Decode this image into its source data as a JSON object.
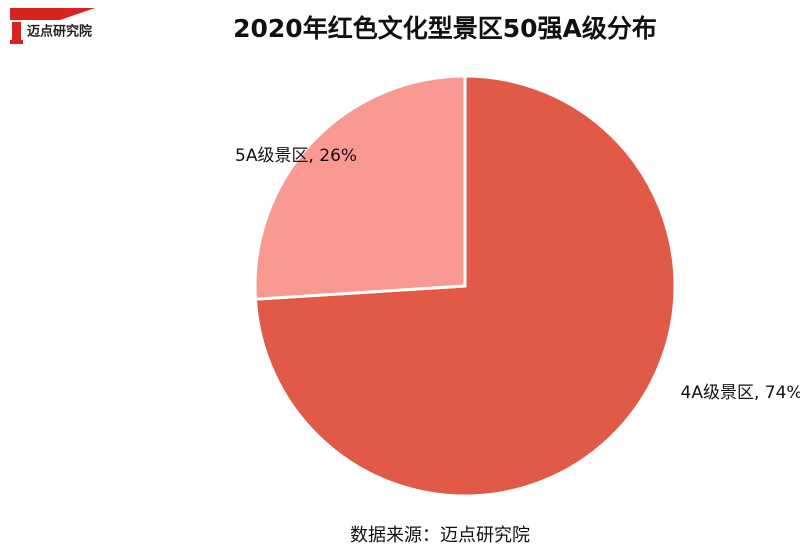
{
  "logo": {
    "text": "迈点研究院"
  },
  "chart_data": {
    "type": "pie",
    "title": "2020年红色文化型景区50强A级分布",
    "categories": [
      "4A级景区",
      "5A级景区"
    ],
    "values": [
      74,
      26
    ],
    "value_labels": [
      "4A级景区, 74%",
      "5A级景区, 26%"
    ],
    "colors": [
      "#e05a47",
      "#f89a92"
    ]
  },
  "source": "数据来源：迈点研究院"
}
